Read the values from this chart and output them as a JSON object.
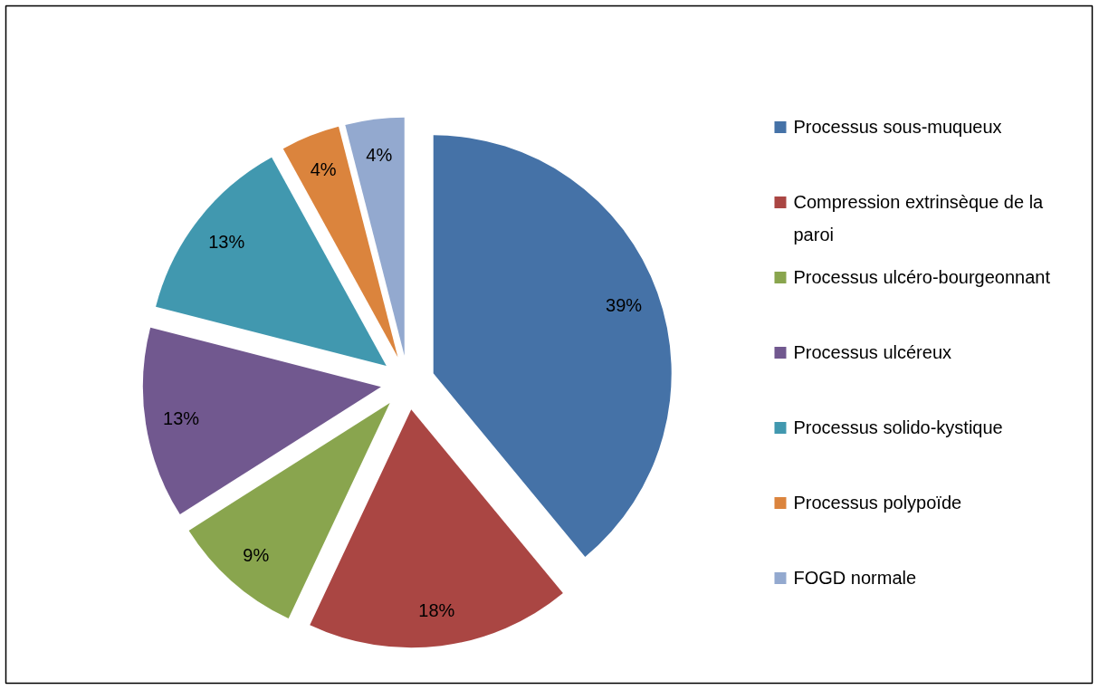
{
  "chart_data": {
    "type": "pie",
    "categories": [
      "Processus sous-muqueux",
      "Compression extrinsèque de la paroi",
      "Processus ulcéro-bourgeonnant",
      "Processus ulcéreux",
      "Processus solido-kystique",
      "Processus polypoïde",
      "FOGD normale"
    ],
    "values": [
      39,
      18,
      9,
      13,
      13,
      4,
      4
    ],
    "colors": [
      "#4572a7",
      "#aa4643",
      "#89a54e",
      "#71588f",
      "#4198af",
      "#db843d",
      "#93a9cf"
    ],
    "value_labels": [
      "39%",
      "18%",
      "9%",
      "13%",
      "13%",
      "4%",
      "4%"
    ],
    "legend": "right"
  }
}
